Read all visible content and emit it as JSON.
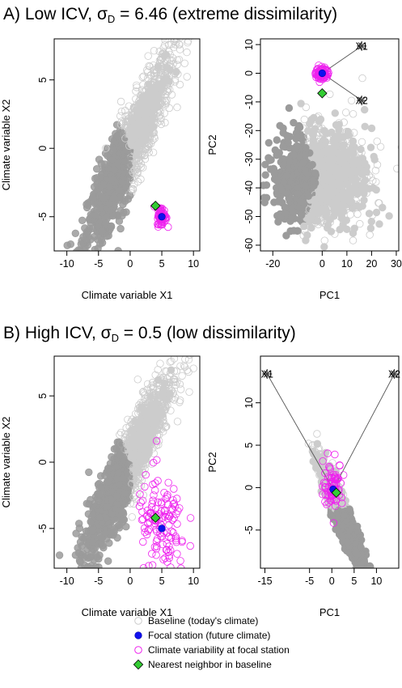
{
  "colors": {
    "baseline_dark": "#9b9b9b",
    "baseline_light": "#cccccc",
    "focal": "#1010ee",
    "icv": "#ee22ee",
    "nearest": "#33cc33",
    "axis": "#000000",
    "ray": "#555555"
  },
  "legend": {
    "position": "bottom-center",
    "items": [
      {
        "key": "baseline",
        "label": "Baseline (today's climate)"
      },
      {
        "key": "focal",
        "label": "Focal station (future climate)"
      },
      {
        "key": "icv",
        "label": "Climate variability at focal station"
      },
      {
        "key": "nearest",
        "label": "Nearest neighbor in baseline"
      }
    ]
  },
  "chart_data": [
    {
      "panel": "A",
      "type": "scatter",
      "title": {
        "prefix": "A) Low ICV, ",
        "sigma": "σ",
        "sub": "D",
        "suffix": " = 6.46 (extreme dissimilarity)"
      },
      "charts": [
        {
          "id": "A-left",
          "space": "climate",
          "xlabel": "Climate variable X1",
          "ylabel": "Climate variable X2",
          "xlim": [
            -12,
            11
          ],
          "ylim": [
            -7.5,
            8
          ],
          "xticks": [
            -10,
            -5,
            0,
            5,
            10
          ],
          "yticks": [
            -5,
            0,
            5
          ],
          "baseline": {
            "corr": 0.9,
            "center": [
              0,
              0
            ]
          },
          "focal": [
            5,
            -5
          ],
          "icv_center": [
            5,
            -5
          ],
          "icv_spread": 0.35,
          "nearest": [
            4,
            -4.2
          ]
        },
        {
          "id": "A-right",
          "space": "pca",
          "xlabel": "PC1",
          "ylabel": "PC2",
          "xlim": [
            -25,
            31
          ],
          "ylim": [
            -62,
            12
          ],
          "xticks": [
            -20,
            0,
            10,
            20,
            30
          ],
          "yticks": [
            10,
            0,
            -10,
            -20,
            -30,
            -40,
            -50,
            -60
          ],
          "baseline_center": [
            0,
            -36
          ],
          "focal": [
            0,
            0
          ],
          "icv_center": [
            0,
            0
          ],
          "icv_spread": 1.2,
          "nearest": [
            0,
            -7
          ],
          "axis_labels": [
            "X1",
            "X2"
          ],
          "axis_arrows": [
            [
              16,
              9.5
            ],
            [
              16,
              -9.5
            ]
          ]
        }
      ]
    },
    {
      "panel": "B",
      "type": "scatter",
      "title": {
        "prefix": "B) High ICV, ",
        "sigma": "σ",
        "sub": "D",
        "suffix": " = 0.5 (low dissimilarity)"
      },
      "charts": [
        {
          "id": "B-left",
          "space": "climate",
          "xlabel": "Climate variable X1",
          "ylabel": "Climate variable X2",
          "xlim": [
            -12,
            11
          ],
          "ylim": [
            -8,
            8
          ],
          "xticks": [
            -10,
            -5,
            0,
            5,
            10
          ],
          "yticks": [
            -5,
            0,
            5
          ],
          "baseline": {
            "corr": 0.9,
            "center": [
              0,
              0
            ]
          },
          "focal": [
            5,
            -5
          ],
          "icv_center": [
            5,
            -5
          ],
          "icv_spread": 2.0,
          "nearest": [
            4,
            -4.2
          ]
        },
        {
          "id": "B-right",
          "space": "pca",
          "xlabel": "PC1",
          "ylabel": "PC2",
          "xlim": [
            -16,
            15
          ],
          "ylim": [
            -9.5,
            15.5
          ],
          "xticks": [
            -15,
            -5,
            0,
            5,
            10
          ],
          "yticks": [
            10,
            5,
            0,
            -5
          ],
          "baseline_center": [
            2,
            -3
          ],
          "focal": [
            0.3,
            -0.2
          ],
          "icv_center": [
            0.3,
            0.3
          ],
          "icv_spread": 1.1,
          "nearest": [
            1,
            -0.6
          ],
          "axis_labels": [
            "X1",
            "X2"
          ],
          "axis_arrows": [
            [
              -14.5,
              13.4
            ],
            [
              14,
              13.4
            ]
          ]
        }
      ]
    }
  ]
}
